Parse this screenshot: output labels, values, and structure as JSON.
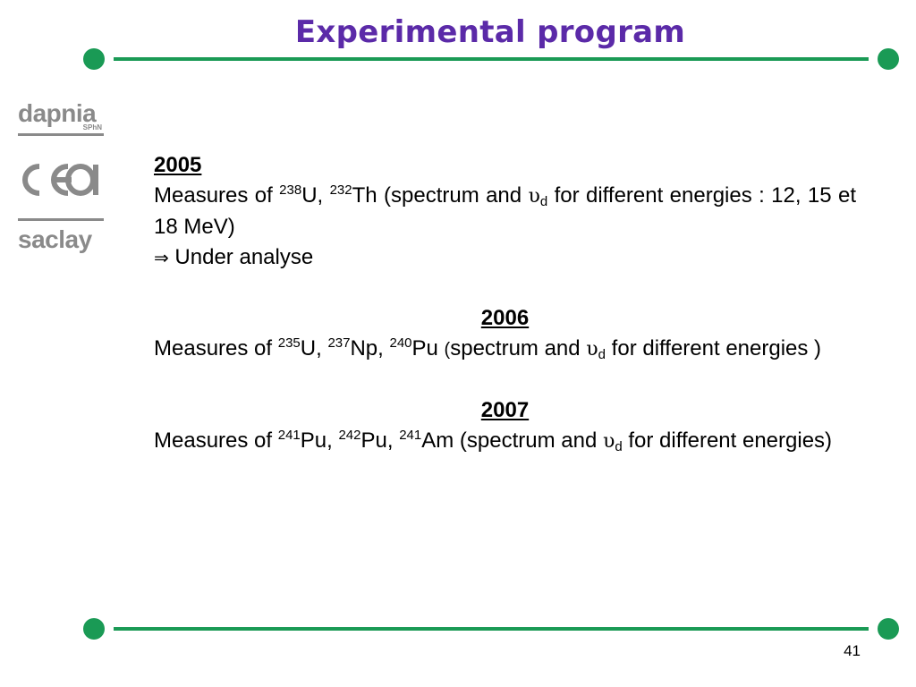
{
  "slide": {
    "title": "Experimental program",
    "page_number": "41",
    "colors": {
      "title": "#5b2aa8",
      "accent": "#1a9a55",
      "logo": "#8a8a8a"
    }
  },
  "logos": {
    "dapnia": "dapnia",
    "dapnia_sub": "SPhN",
    "cea": "cea",
    "saclay": "saclay"
  },
  "sections": {
    "y2005": {
      "year": "2005",
      "measures": "Measures of ",
      "iso1_mass": "238",
      "iso1_sym": "U, ",
      "iso2_mass": "232",
      "iso2_sym": "Th",
      "spectrum": " (spectrum and ",
      "nu": "υ",
      "nu_sub": "d",
      "rest": " for different energies : 12, 15 et 18 MeV)",
      "arrow": "⇒",
      "status": " Under analyse"
    },
    "y2006": {
      "year": "2006",
      "measures": "Measures of ",
      "iso1_mass": "235",
      "iso1_sym": "U, ",
      "iso2_mass": "237",
      "iso2_sym": "Np, ",
      "iso3_mass": "240",
      "iso3_sym": "Pu ",
      "paren": "(",
      "spectrum": "spectrum and ",
      "nu": "υ",
      "nu_sub": "d",
      "rest": " for different energies )"
    },
    "y2007": {
      "year": "2007",
      "measures": "Measures of ",
      "iso1_mass": "241",
      "iso1_sym": "Pu, ",
      "iso2_mass": "242",
      "iso2_sym": "Pu, ",
      "iso3_mass": "241",
      "iso3_sym": "Am",
      "spectrum": " (spectrum and ",
      "nu": "υ",
      "nu_sub": "d",
      "rest": " for different energies)"
    }
  }
}
